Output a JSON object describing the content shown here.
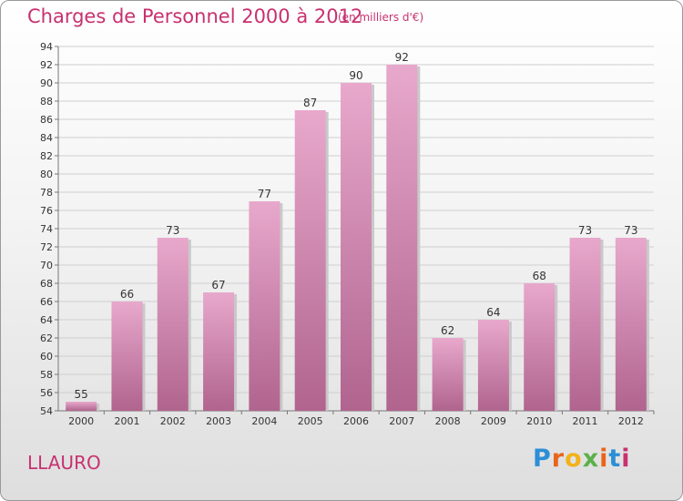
{
  "header": {
    "title": "Charges de Personnel 2000 à 2012",
    "unit": "(en milliers d'€)"
  },
  "footer": {
    "commune": "LLAURO",
    "logo": "Proxiti"
  },
  "colors": {
    "accent": "#c8316f",
    "bar_top": "#e8a8cc",
    "bar_bottom": "#b0648e"
  },
  "chart_data": {
    "type": "bar",
    "title": "Charges de Personnel 2000 à 2012",
    "subtitle": "(en milliers d'€)",
    "categories": [
      "2000",
      "2001",
      "2002",
      "2003",
      "2004",
      "2005",
      "2006",
      "2007",
      "2008",
      "2009",
      "2010",
      "2011",
      "2012"
    ],
    "values": [
      55,
      66,
      73,
      67,
      77,
      87,
      90,
      92,
      62,
      64,
      68,
      73,
      73
    ],
    "ylim": [
      54,
      94
    ],
    "ytick_step": 2,
    "grid": true,
    "data_labels": true
  }
}
